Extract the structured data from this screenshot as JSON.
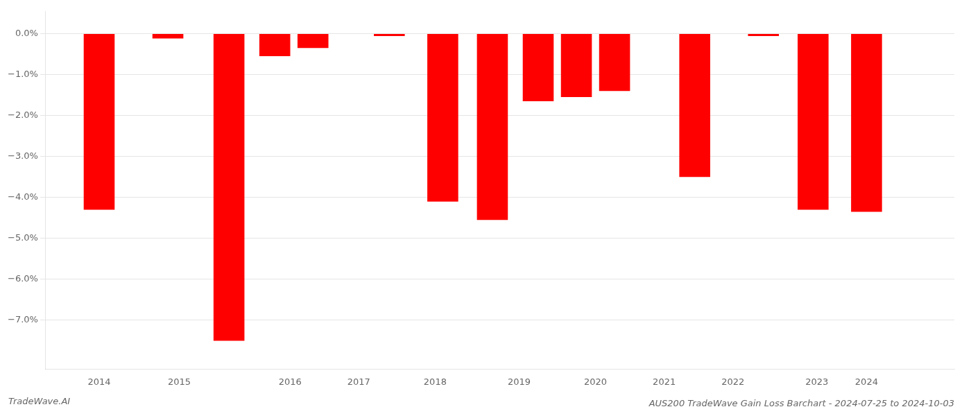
{
  "chart_data": {
    "type": "bar",
    "title": "AUS200 TradeWave Gain Loss Barchart - 2024-07-25 to 2024-10-03",
    "annotations": [
      "TradeWave.AI"
    ],
    "x": [
      2013.6,
      2014.5,
      2015.3,
      2015.9,
      2016.4,
      2017.4,
      2018.1,
      2018.75,
      2019.35,
      2019.85,
      2020.35,
      2021.4,
      2022.3,
      2022.95,
      2023.65
    ],
    "values": [
      -4.3,
      -0.12,
      -7.5,
      -0.55,
      -0.35,
      -0.06,
      -4.1,
      -4.55,
      -1.65,
      -1.55,
      -1.4,
      -3.5,
      -0.06,
      -4.3,
      -4.35
    ],
    "color": "#ff0000",
    "xlim": [
      2012.9,
      2024.8
    ],
    "xticks": [
      {
        "value": 2013.6,
        "label": "2014"
      },
      {
        "value": 2014.65,
        "label": "2015"
      },
      {
        "value": 2016.1,
        "label": "2016"
      },
      {
        "value": 2017.0,
        "label": "2017"
      },
      {
        "value": 2018.0,
        "label": "2018"
      },
      {
        "value": 2019.1,
        "label": "2019"
      },
      {
        "value": 2020.1,
        "label": "2020"
      },
      {
        "value": 2021.0,
        "label": "2021"
      },
      {
        "value": 2021.9,
        "label": "2022"
      },
      {
        "value": 2023.0,
        "label": "2023"
      },
      {
        "value": 2023.65,
        "label": "2024"
      }
    ],
    "ylim": [
      -8.2,
      0.55
    ],
    "yticks": [
      {
        "value": 0.0,
        "label": "0.0%"
      },
      {
        "value": -1.0,
        "label": "−1.0%"
      },
      {
        "value": -2.0,
        "label": "−2.0%"
      },
      {
        "value": -3.0,
        "label": "−3.0%"
      },
      {
        "value": -4.0,
        "label": "−4.0%"
      },
      {
        "value": -5.0,
        "label": "−5.0%"
      },
      {
        "value": -6.0,
        "label": "−6.0%"
      },
      {
        "value": -7.0,
        "label": "−7.0%"
      }
    ],
    "grid": true
  }
}
